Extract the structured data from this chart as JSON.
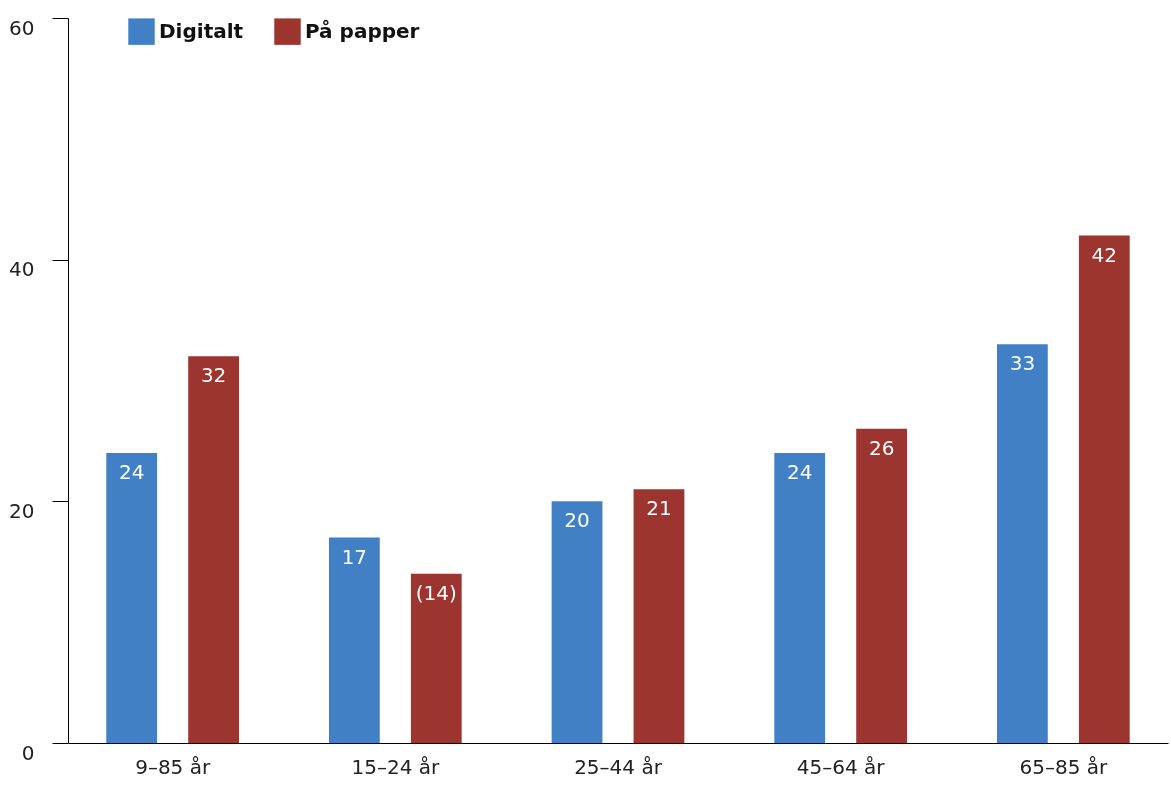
{
  "chart_data": {
    "type": "bar",
    "categories": [
      "9–85 år",
      "15–24 år",
      "25–44 år",
      "45–64 år",
      "65–85 år"
    ],
    "series": [
      {
        "name": "Digitalt",
        "color": "#4180c4",
        "values": [
          24,
          17,
          20,
          24,
          33
        ],
        "value_labels": [
          "24",
          "17",
          "20",
          "24",
          "33"
        ]
      },
      {
        "name": "På papper",
        "color": "#9c3530",
        "values": [
          32,
          14,
          21,
          26,
          42
        ],
        "value_labels": [
          "32",
          "(14)",
          "21",
          "26",
          "42"
        ]
      }
    ],
    "ylim": [
      0,
      60
    ],
    "yticks": [
      0,
      20,
      40,
      60
    ],
    "grid": false,
    "legend": "top left"
  }
}
